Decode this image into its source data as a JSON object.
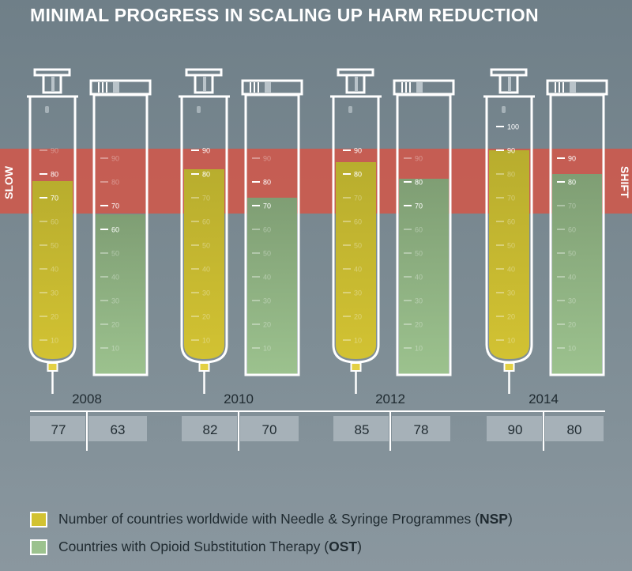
{
  "title": "MINIMAL PROGRESS IN SCALING UP HARM REDUCTION",
  "band": {
    "left_label": "SLOW",
    "right_label": "SHIFT",
    "from": 70,
    "to": 90,
    "color": "#cc5a4e"
  },
  "colors": {
    "nsp": "#d2c232",
    "ost": "#9cc28e",
    "outline": "#ffffff",
    "table_cell": "#a6b1b8"
  },
  "chart_data": {
    "type": "bar",
    "title": "MINIMAL PROGRESS IN SCALING UP HARM REDUCTION",
    "categories": [
      "2008",
      "2010",
      "2012",
      "2014"
    ],
    "series": [
      {
        "name": "NSP",
        "values": [
          77,
          82,
          85,
          90
        ]
      },
      {
        "name": "OST",
        "values": [
          63,
          70,
          78,
          80
        ]
      }
    ],
    "ylim": [
      0,
      100
    ],
    "tick_labels": [
      "10",
      "20",
      "30",
      "40",
      "50",
      "60",
      "70",
      "80",
      "90",
      "100"
    ],
    "syringe_labeled_ticks": [
      [
        70,
        80
      ],
      [
        80,
        90
      ],
      [
        80,
        90
      ],
      [
        90,
        100
      ]
    ],
    "tube_labeled_ticks": [
      [
        60,
        70
      ],
      [
        70,
        80
      ],
      [
        70,
        80
      ],
      [
        80,
        90
      ]
    ],
    "table": [
      [
        "77",
        "63"
      ],
      [
        "82",
        "70"
      ],
      [
        "85",
        "78"
      ],
      [
        "90",
        "80"
      ]
    ]
  },
  "legend": {
    "nsp": {
      "text": "Number of countries worldwide with Needle & Syringe Programmes (",
      "abbr": "NSP",
      "close": ")"
    },
    "ost": {
      "text": "Countries with Opioid Substitution Therapy (",
      "abbr": "OST",
      "close": ")"
    }
  }
}
